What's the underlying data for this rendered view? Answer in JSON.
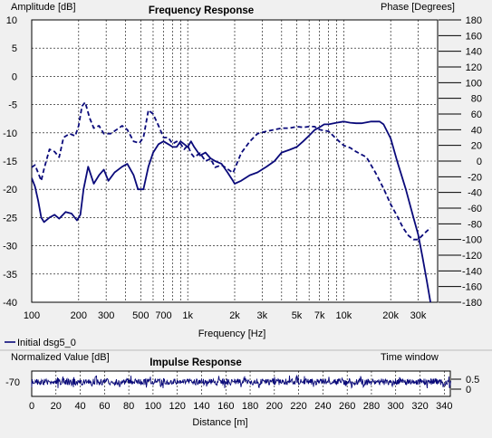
{
  "colors": {
    "background": "#f0f0f0",
    "plot_bg": "#ffffff",
    "series": "#0a0a7a",
    "grid": "#000000"
  },
  "chart_data": [
    {
      "type": "line",
      "title": "Frequency Response",
      "xlabel": "Frequency [Hz]",
      "ylabel": "Amplitude [dB]",
      "y2label": "Phase [Degrees]",
      "xscale": "log",
      "xlim": [
        100,
        40000
      ],
      "ylim": [
        -40,
        10
      ],
      "y2lim": [
        -180,
        180
      ],
      "grid": true,
      "legend": "bottom-left",
      "xticks": [
        "100",
        "200",
        "300",
        "500",
        "700",
        "1k",
        "2k",
        "3k",
        "5k",
        "7k",
        "10k",
        "20k",
        "30k"
      ],
      "xtick_values": [
        100,
        200,
        300,
        500,
        700,
        1000,
        2000,
        3000,
        5000,
        7000,
        10000,
        20000,
        30000
      ],
      "yticks": [
        10,
        5,
        0,
        -5,
        -10,
        -15,
        -20,
        -25,
        -30,
        -35,
        -40
      ],
      "y2ticks": [
        180,
        160,
        140,
        120,
        100,
        80,
        60,
        40,
        20,
        0,
        -20,
        -40,
        -60,
        -80,
        -100,
        -120,
        -140,
        -160,
        -180
      ],
      "series": [
        {
          "name": "Initial dsg5_0",
          "style": "solid",
          "axis": "left",
          "points": [
            [
              100,
              -18
            ],
            [
              105,
              -19.5
            ],
            [
              110,
              -22
            ],
            [
              115,
              -25
            ],
            [
              120,
              -25.8
            ],
            [
              130,
              -25
            ],
            [
              140,
              -24.5
            ],
            [
              150,
              -25.2
            ],
            [
              165,
              -24
            ],
            [
              180,
              -24.3
            ],
            [
              195,
              -25.5
            ],
            [
              205,
              -24.5
            ],
            [
              215,
              -20
            ],
            [
              230,
              -16
            ],
            [
              250,
              -19
            ],
            [
              270,
              -17.5
            ],
            [
              290,
              -16.5
            ],
            [
              310,
              -18.5
            ],
            [
              340,
              -17
            ],
            [
              380,
              -16
            ],
            [
              410,
              -15.5
            ],
            [
              450,
              -17.5
            ],
            [
              480,
              -20
            ],
            [
              520,
              -20
            ],
            [
              560,
              -16
            ],
            [
              600,
              -13.5
            ],
            [
              650,
              -12
            ],
            [
              700,
              -11.5
            ],
            [
              750,
              -12
            ],
            [
              800,
              -12.5
            ],
            [
              850,
              -12.5
            ],
            [
              900,
              -11.5
            ],
            [
              950,
              -12
            ],
            [
              1000,
              -12.5
            ],
            [
              1050,
              -11.5
            ],
            [
              1100,
              -12.5
            ],
            [
              1200,
              -14
            ],
            [
              1300,
              -13.5
            ],
            [
              1400,
              -14.5
            ],
            [
              1500,
              -15
            ],
            [
              1650,
              -15.5
            ],
            [
              1800,
              -17
            ],
            [
              1950,
              -18.5
            ],
            [
              2000,
              -19
            ],
            [
              2200,
              -18.5
            ],
            [
              2500,
              -17.5
            ],
            [
              2800,
              -17
            ],
            [
              3200,
              -16
            ],
            [
              3600,
              -15
            ],
            [
              4000,
              -13.5
            ],
            [
              4500,
              -13
            ],
            [
              5000,
              -12.5
            ],
            [
              5500,
              -11.5
            ],
            [
              6000,
              -10.5
            ],
            [
              6500,
              -9.5
            ],
            [
              7000,
              -9
            ],
            [
              7500,
              -8.5
            ],
            [
              8000,
              -8.5
            ],
            [
              9000,
              -8.2
            ],
            [
              10000,
              -8
            ],
            [
              11000,
              -8.2
            ],
            [
              12000,
              -8.3
            ],
            [
              13000,
              -8.3
            ],
            [
              15000,
              -8
            ],
            [
              17000,
              -8
            ],
            [
              18000,
              -8.5
            ],
            [
              20000,
              -11
            ],
            [
              22000,
              -15
            ],
            [
              25000,
              -20
            ],
            [
              28000,
              -25
            ],
            [
              30000,
              -28
            ],
            [
              32000,
              -32
            ],
            [
              34000,
              -36
            ],
            [
              36000,
              -40
            ]
          ]
        },
        {
          "name": "Phase",
          "style": "dashed",
          "axis": "right",
          "points": [
            [
              100,
              -8
            ],
            [
              105,
              -5
            ],
            [
              110,
              -15
            ],
            [
              115,
              -25
            ],
            [
              120,
              -10
            ],
            [
              130,
              15
            ],
            [
              140,
              12
            ],
            [
              150,
              5
            ],
            [
              160,
              30
            ],
            [
              175,
              35
            ],
            [
              190,
              32
            ],
            [
              200,
              45
            ],
            [
              210,
              70
            ],
            [
              220,
              75
            ],
            [
              235,
              55
            ],
            [
              250,
              42
            ],
            [
              270,
              45
            ],
            [
              290,
              35
            ],
            [
              320,
              35
            ],
            [
              350,
              40
            ],
            [
              380,
              45
            ],
            [
              410,
              40
            ],
            [
              450,
              25
            ],
            [
              490,
              23
            ],
            [
              520,
              30
            ],
            [
              560,
              65
            ],
            [
              600,
              60
            ],
            [
              650,
              45
            ],
            [
              700,
              30
            ],
            [
              750,
              30
            ],
            [
              800,
              22
            ],
            [
              850,
              25
            ],
            [
              900,
              22
            ],
            [
              950,
              15
            ],
            [
              1000,
              20
            ],
            [
              1050,
              10
            ],
            [
              1100,
              5
            ],
            [
              1200,
              10
            ],
            [
              1300,
              0
            ],
            [
              1400,
              3
            ],
            [
              1500,
              -8
            ],
            [
              1650,
              -5
            ],
            [
              1800,
              -10
            ],
            [
              1950,
              -15
            ],
            [
              2000,
              -10
            ],
            [
              2200,
              10
            ],
            [
              2500,
              25
            ],
            [
              2800,
              35
            ],
            [
              3200,
              38
            ],
            [
              3600,
              40
            ],
            [
              4000,
              42
            ],
            [
              4500,
              42
            ],
            [
              5000,
              44
            ],
            [
              5500,
              43
            ],
            [
              6000,
              44
            ],
            [
              6500,
              44
            ],
            [
              7000,
              40
            ],
            [
              8000,
              38
            ],
            [
              9000,
              28
            ],
            [
              10000,
              20
            ],
            [
              11000,
              17
            ],
            [
              12000,
              12
            ],
            [
              14000,
              5
            ],
            [
              16000,
              -15
            ],
            [
              18000,
              -35
            ],
            [
              20000,
              -55
            ],
            [
              22000,
              -70
            ],
            [
              24000,
              -85
            ],
            [
              26000,
              -95
            ],
            [
              28000,
              -100
            ],
            [
              30000,
              -100
            ],
            [
              33000,
              -92
            ],
            [
              36000,
              -85
            ]
          ]
        }
      ]
    },
    {
      "type": "line",
      "title": "Impulse Response",
      "xlabel": "Distance [m]",
      "ylabel": "Normalized Value [dB]",
      "y2label": "Time window",
      "xlim": [
        0,
        345
      ],
      "xticks": [
        0,
        20,
        40,
        60,
        80,
        100,
        120,
        140,
        160,
        180,
        200,
        220,
        240,
        260,
        280,
        300,
        320,
        340
      ],
      "yticks": [
        "-70"
      ],
      "y2ticks": [
        "0.5",
        "0"
      ],
      "grid": true
    }
  ],
  "legend_label": "Initial dsg5_0"
}
